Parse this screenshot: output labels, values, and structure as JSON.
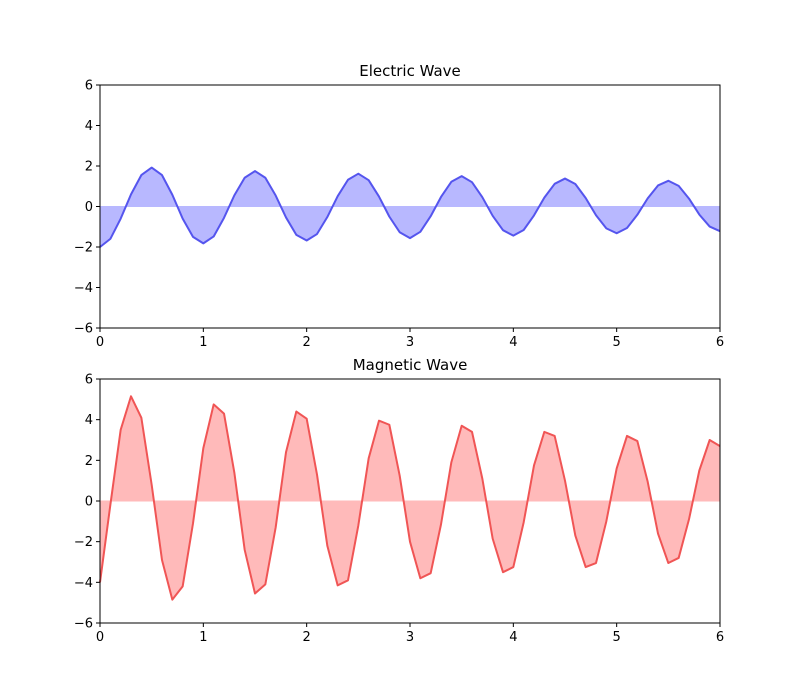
{
  "chart_data": [
    {
      "type": "area",
      "title": "Electric Wave",
      "xlabel": "",
      "ylabel": "",
      "xlim": [
        0,
        6
      ],
      "ylim": [
        -6,
        6
      ],
      "xticks": [
        "0",
        "1",
        "2",
        "3",
        "4",
        "5",
        "6"
      ],
      "yticks": [
        "6",
        "4",
        "2",
        "0",
        "−2",
        "−4",
        "−6"
      ],
      "grid": false,
      "line_color": "#5555ee",
      "fill_color": "#b8b8ff",
      "x": [
        0,
        0.1,
        0.2,
        0.3,
        0.4,
        0.5,
        0.6,
        0.7,
        0.8,
        0.9,
        1.0,
        1.1,
        1.2,
        1.3,
        1.4,
        1.5,
        1.6,
        1.7,
        1.8,
        1.9,
        2.0,
        2.1,
        2.2,
        2.3,
        2.4,
        2.5,
        2.6,
        2.7,
        2.8,
        2.9,
        3.0,
        3.1,
        3.2,
        3.3,
        3.4,
        3.5,
        3.6,
        3.7,
        3.8,
        3.9,
        4.0,
        4.1,
        4.2,
        4.3,
        4.4,
        4.5,
        4.6,
        4.7,
        4.8,
        4.9,
        5.0,
        5.1,
        5.2,
        5.3,
        5.4,
        5.5,
        5.6,
        5.7,
        5.8,
        5.9,
        6.0
      ],
      "values": [
        -2.0,
        -1.6,
        -0.6,
        0.6,
        1.55,
        1.92,
        1.55,
        0.58,
        -0.6,
        -1.5,
        -1.82,
        -1.48,
        -0.56,
        0.55,
        1.42,
        1.75,
        1.42,
        0.54,
        -0.54,
        -1.4,
        -1.68,
        -1.36,
        -0.52,
        0.51,
        1.32,
        1.62,
        1.3,
        0.49,
        -0.5,
        -1.27,
        -1.56,
        -1.25,
        -0.48,
        0.47,
        1.22,
        1.5,
        1.2,
        0.46,
        -0.46,
        -1.17,
        -1.44,
        -1.16,
        -0.44,
        0.44,
        1.12,
        1.38,
        1.11,
        0.42,
        -0.43,
        -1.08,
        -1.32,
        -1.06,
        -0.41,
        0.4,
        1.04,
        1.27,
        1.02,
        0.39,
        -0.4,
        -0.99,
        -1.22
      ]
    },
    {
      "type": "area",
      "title": "Magnetic Wave",
      "xlabel": "",
      "ylabel": "",
      "xlim": [
        0,
        6
      ],
      "ylim": [
        -6,
        6
      ],
      "xticks": [
        "0",
        "1",
        "2",
        "3",
        "4",
        "5",
        "6"
      ],
      "yticks": [
        "6",
        "4",
        "2",
        "0",
        "−2",
        "−4",
        "−6"
      ],
      "grid": false,
      "line_color": "#f05555",
      "fill_color": "#ffbaba",
      "x": [
        0,
        0.1,
        0.2,
        0.3,
        0.4,
        0.5,
        0.6,
        0.7,
        0.8,
        0.9,
        1.0,
        1.1,
        1.2,
        1.3,
        1.4,
        1.5,
        1.6,
        1.7,
        1.8,
        1.9,
        2.0,
        2.1,
        2.2,
        2.3,
        2.4,
        2.5,
        2.6,
        2.7,
        2.8,
        2.9,
        3.0,
        3.1,
        3.2,
        3.3,
        3.4,
        3.5,
        3.6,
        3.7,
        3.8,
        3.9,
        4.0,
        4.1,
        4.2,
        4.3,
        4.4,
        4.5,
        4.6,
        4.7,
        4.8,
        4.9,
        5.0,
        5.1,
        5.2,
        5.3,
        5.4,
        5.5,
        5.6,
        5.7,
        5.8,
        5.9,
        6.0
      ],
      "values": [
        -4.0,
        -0.2,
        3.5,
        5.15,
        4.1,
        0.8,
        -2.9,
        -4.85,
        -4.2,
        -1.1,
        2.6,
        4.75,
        4.3,
        1.4,
        -2.4,
        -4.55,
        -4.1,
        -1.3,
        2.4,
        4.4,
        4.05,
        1.3,
        -2.2,
        -4.15,
        -3.9,
        -1.2,
        2.1,
        3.95,
        3.75,
        1.25,
        -2.0,
        -3.8,
        -3.55,
        -1.15,
        1.9,
        3.7,
        3.4,
        1.1,
        -1.85,
        -3.5,
        -3.25,
        -1.05,
        1.75,
        3.4,
        3.2,
        1.0,
        -1.7,
        -3.25,
        -3.05,
        -1.0,
        1.6,
        3.2,
        2.95,
        0.95,
        -1.6,
        -3.05,
        -2.8,
        -0.9,
        1.5,
        3.0,
        2.7
      ]
    }
  ]
}
